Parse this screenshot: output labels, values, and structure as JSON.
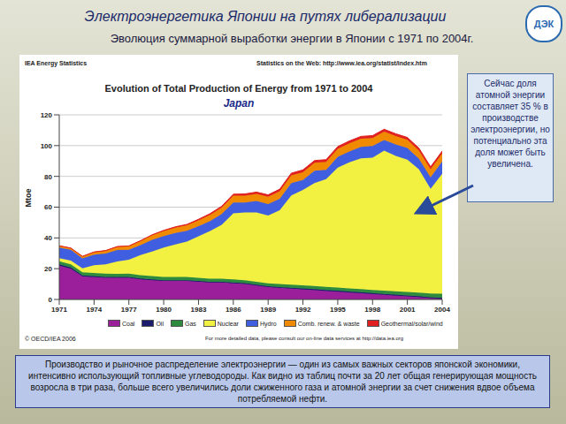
{
  "header": {
    "title": "Электроэнергетика Японии на путях либерализации",
    "subtitle": "Эволюция суммарной выработки энергии в Японии с 1971 по 2004г.",
    "logo": "ДЭК"
  },
  "chart_data": {
    "type": "area",
    "stacked": true,
    "title": "Evolution of Total Production of Energy from 1971 to 2004",
    "subtitle": "Japan",
    "source": "IEA Energy Statistics",
    "source_url": "Statistics on the Web: http://www.iea.org/statist/index.htm",
    "footer_left": "© OECD/IEA 2006",
    "footer_right": "For more detailed data, please consult our on-line data services at http://data.iea.org",
    "y_label": "Mtoe",
    "x": [
      1971,
      1972,
      1973,
      1974,
      1975,
      1976,
      1977,
      1978,
      1979,
      1980,
      1981,
      1982,
      1983,
      1984,
      1985,
      1986,
      1987,
      1988,
      1989,
      1990,
      1991,
      1992,
      1993,
      1994,
      1995,
      1996,
      1997,
      1998,
      1999,
      2000,
      2001,
      2002,
      2003,
      2004
    ],
    "xlim": [
      1971,
      2004
    ],
    "xticks": [
      1971,
      1974,
      1977,
      1980,
      1983,
      1986,
      1989,
      1992,
      1995,
      1998,
      2001,
      2004
    ],
    "ylim": [
      0,
      120
    ],
    "yticks": [
      0,
      20,
      40,
      60,
      80,
      100,
      120
    ],
    "grid": true,
    "legend": "bottom",
    "series": [
      {
        "name": "Coal",
        "color": "#9b1f9b",
        "values": [
          22,
          20,
          15,
          14.5,
          14,
          14,
          14,
          13,
          12.5,
          12,
          12,
          12,
          11.5,
          11,
          11,
          10.5,
          10,
          9,
          8,
          7.5,
          7,
          6.5,
          6,
          5.5,
          5,
          4.5,
          4,
          3.5,
          3,
          2.5,
          2,
          1.5,
          0.8,
          0.5
        ]
      },
      {
        "name": "Oil",
        "color": "#1c1c6e",
        "values": [
          0.8,
          0.8,
          0.7,
          0.7,
          0.7,
          0.6,
          0.6,
          0.6,
          0.5,
          0.5,
          0.5,
          0.5,
          0.5,
          0.5,
          0.5,
          0.5,
          0.6,
          0.6,
          0.6,
          0.6,
          0.6,
          0.7,
          0.7,
          0.7,
          0.7,
          0.7,
          0.7,
          0.7,
          0.6,
          0.6,
          0.6,
          0.6,
          0.6,
          0.6
        ]
      },
      {
        "name": "Gas",
        "color": "#2e8b3e",
        "values": [
          2,
          2,
          2,
          2,
          2.1,
          2.1,
          2.2,
          2.2,
          2.2,
          2.2,
          2.2,
          2.1,
          2.1,
          2,
          2,
          2,
          1.9,
          1.9,
          1.9,
          1.9,
          2,
          2,
          2,
          2,
          2,
          2,
          2,
          2,
          2.1,
          2.2,
          2.3,
          2.4,
          2.5,
          2.6
        ]
      },
      {
        "name": "Nuclear",
        "color": "#f2f040",
        "values": [
          2,
          2.5,
          2.5,
          5,
          6,
          8,
          9,
          13,
          16,
          19,
          21,
          23,
          27,
          31,
          35,
          43,
          44,
          45,
          44,
          48,
          58,
          62,
          67,
          70,
          78,
          82,
          85,
          86,
          91,
          88,
          86,
          80,
          68,
          78
        ]
      },
      {
        "name": "Hydro",
        "color": "#3f5fe0",
        "values": [
          7,
          7,
          6.5,
          7,
          7,
          7.5,
          6.5,
          6.5,
          7.5,
          7.5,
          7.5,
          7,
          6.5,
          6.5,
          7,
          7,
          6.5,
          7.5,
          7.5,
          7.5,
          8,
          6.5,
          8,
          6,
          7,
          7,
          7.5,
          7.5,
          7,
          7.5,
          7.5,
          7,
          7.5,
          8
        ]
      },
      {
        "name": "Comb. renew. & waste",
        "color": "#f08a00",
        "values": [
          1,
          1,
          1.2,
          1.5,
          1.8,
          2,
          2.3,
          2.6,
          3,
          3.3,
          3.5,
          3.6,
          3.8,
          4,
          4.2,
          4.4,
          4.5,
          4.6,
          4.7,
          4.8,
          5,
          5,
          5.1,
          5.2,
          5.2,
          5.3,
          5.3,
          5.3,
          5.4,
          5.4,
          5.4,
          5.3,
          5.3,
          5.2
        ]
      },
      {
        "name": "Geothermal/solar/wind",
        "color": "#e02020",
        "values": [
          0.1,
          0.1,
          0.1,
          0.2,
          0.2,
          0.2,
          0.2,
          0.3,
          0.3,
          0.4,
          0.5,
          0.6,
          0.7,
          0.8,
          0.9,
          1,
          1.1,
          1.2,
          1.3,
          1.4,
          1.5,
          1.5,
          1.5,
          1.5,
          1.5,
          1.5,
          1.5,
          1.5,
          1.5,
          1.5,
          1.5,
          1.5,
          1.5,
          1.5
        ]
      }
    ]
  },
  "annotations": {
    "callout": "Сейчас доля атомной энергии составляет 35 % в производстве электроэнергии, но потенциально эта доля может быть увеличена.",
    "note": "Производство и рыночное распределение электроэнергии — один из самых важных секторов японской экономики, интенсивно использующий топливные углеводороды. Как видно из таблиц почти за 20 лет общая генерирующая мощность возросла в три раза, больше всего увеличились доли сжиженного газа и атомной энергии за счет снижения вдвое объема потребляемой нефти."
  }
}
